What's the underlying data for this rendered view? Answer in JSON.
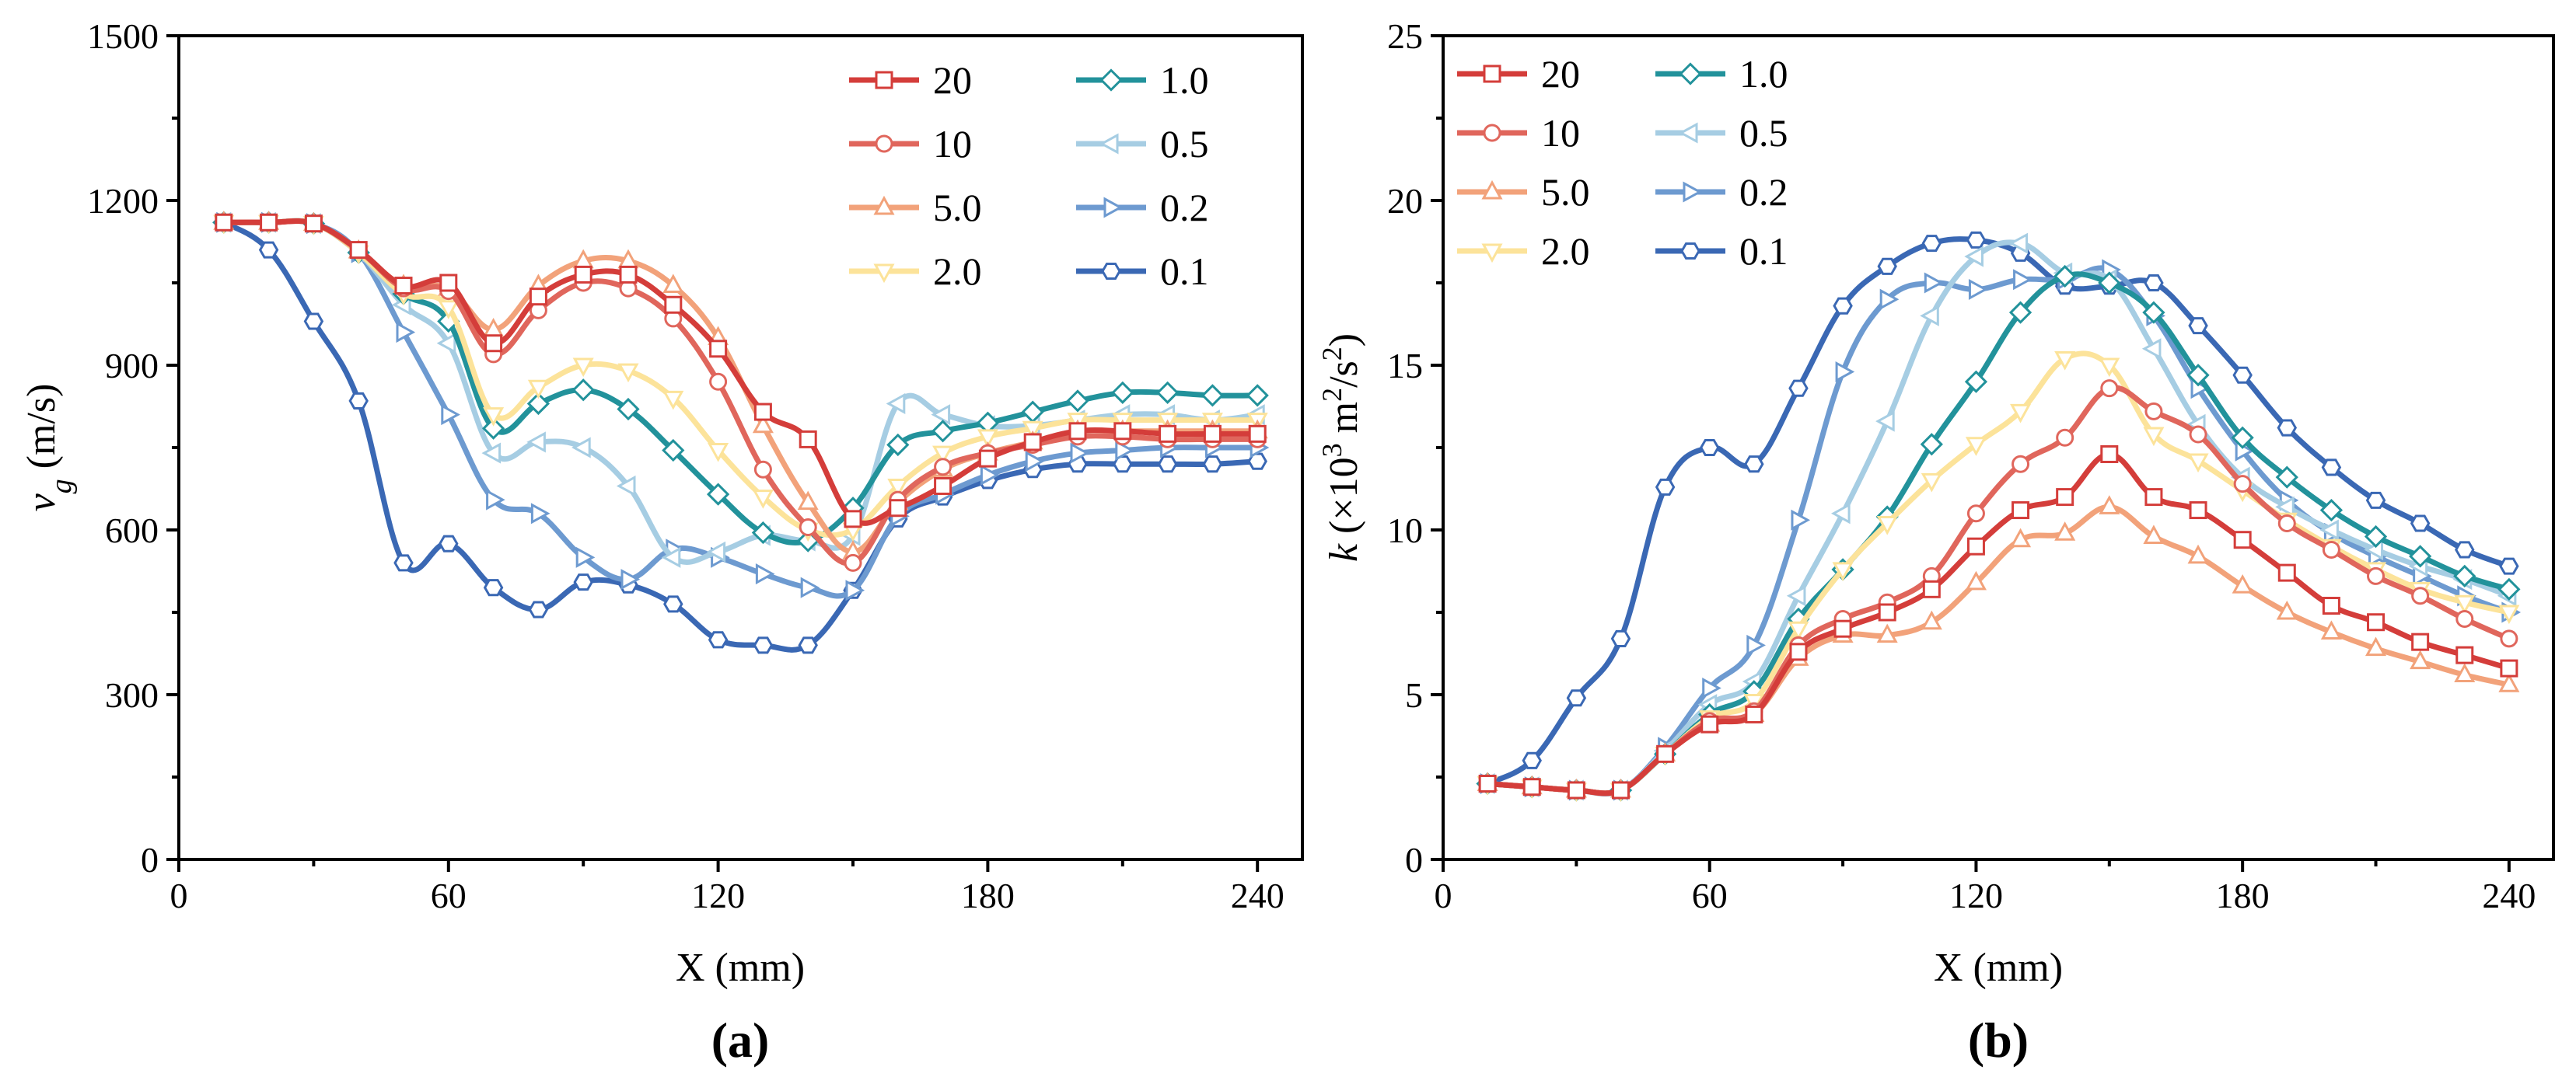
{
  "chart_data": [
    {
      "type": "line",
      "panel_label": "(a)",
      "xlabel": "X (mm)",
      "ylabel_symbol": "v",
      "ylabel_subscript": "g",
      "ylabel_unit": " (m/s)",
      "xlim": [
        0,
        250
      ],
      "ylim": [
        0,
        1500
      ],
      "xticks": [
        0,
        60,
        120,
        180,
        240
      ],
      "yticks": [
        0,
        300,
        600,
        900,
        1200,
        1500
      ],
      "legend_position": "top-right",
      "x": [
        10,
        20,
        30,
        40,
        50,
        60,
        70,
        80,
        90,
        100,
        110,
        120,
        130,
        140,
        150,
        160,
        170,
        180,
        190,
        200,
        210,
        220,
        230,
        240
      ],
      "series": [
        {
          "name": "20",
          "color": "#d43d3a",
          "marker": "square",
          "values": [
            1160,
            1160,
            1158,
            1110,
            1045,
            1050,
            940,
            1025,
            1065,
            1065,
            1010,
            930,
            815,
            765,
            620,
            640,
            680,
            730,
            760,
            780,
            780,
            775,
            775,
            775
          ]
        },
        {
          "name": "10",
          "color": "#e0665c",
          "marker": "circle",
          "values": [
            1160,
            1160,
            1158,
            1110,
            1040,
            1035,
            920,
            1000,
            1050,
            1040,
            985,
            870,
            710,
            605,
            540,
            655,
            715,
            740,
            755,
            770,
            770,
            765,
            765,
            765
          ]
        },
        {
          "name": "5.0",
          "color": "#f2a27a",
          "marker": "triangle",
          "values": [
            1160,
            1160,
            1158,
            1108,
            1045,
            1040,
            965,
            1045,
            1090,
            1090,
            1045,
            950,
            790,
            650,
            560,
            650,
            710,
            740,
            760,
            780,
            780,
            780,
            780,
            780
          ]
        },
        {
          "name": "2.0",
          "color": "#fce39a",
          "marker": "tri-down",
          "values": [
            1160,
            1160,
            1158,
            1105,
            1030,
            1005,
            810,
            860,
            900,
            890,
            840,
            745,
            660,
            600,
            600,
            680,
            740,
            770,
            785,
            800,
            800,
            800,
            800,
            800
          ]
        },
        {
          "name": "1.0",
          "color": "#22929b",
          "marker": "diamond",
          "values": [
            1160,
            1160,
            1158,
            1105,
            1030,
            980,
            785,
            830,
            855,
            820,
            745,
            665,
            595,
            580,
            640,
            755,
            780,
            795,
            815,
            835,
            850,
            850,
            845,
            845
          ]
        },
        {
          "name": "0.5",
          "color": "#a6cde3",
          "marker": "tri-left",
          "values": [
            1160,
            1160,
            1158,
            1105,
            1010,
            940,
            740,
            760,
            750,
            680,
            550,
            560,
            590,
            580,
            590,
            830,
            810,
            790,
            790,
            800,
            810,
            810,
            800,
            810
          ]
        },
        {
          "name": "0.2",
          "color": "#6d9ad0",
          "marker": "tri-right",
          "values": [
            1160,
            1160,
            1158,
            1105,
            960,
            810,
            655,
            630,
            550,
            510,
            565,
            550,
            520,
            495,
            490,
            625,
            665,
            700,
            725,
            740,
            745,
            750,
            750,
            750
          ]
        },
        {
          "name": "0.1",
          "color": "#3a68b4",
          "marker": "hexagon",
          "values": [
            1160,
            1110,
            980,
            835,
            540,
            575,
            495,
            455,
            505,
            500,
            465,
            400,
            390,
            390,
            490,
            620,
            660,
            690,
            710,
            720,
            720,
            720,
            720,
            725
          ]
        }
      ]
    },
    {
      "type": "line",
      "panel_label": "(b)",
      "xlabel": "X (mm)",
      "ylabel_symbol": "k",
      "ylabel_rest": " (×10",
      "ylabel_exp1": "3",
      "ylabel_mid": " m",
      "ylabel_exp2": "2",
      "ylabel_mid2": "/s",
      "ylabel_exp3": "2",
      "ylabel_end": ")",
      "xlim": [
        0,
        250
      ],
      "ylim": [
        0,
        25
      ],
      "xticks": [
        0,
        60,
        120,
        180,
        240
      ],
      "yticks": [
        0,
        5,
        10,
        15,
        20,
        25
      ],
      "legend_position": "top-left",
      "x": [
        10,
        20,
        30,
        40,
        50,
        60,
        70,
        80,
        90,
        100,
        110,
        120,
        130,
        140,
        150,
        160,
        170,
        180,
        190,
        200,
        210,
        220,
        230,
        240
      ],
      "series": [
        {
          "name": "20",
          "color": "#d43d3a",
          "marker": "square",
          "values": [
            2.3,
            2.2,
            2.1,
            2.1,
            3.2,
            4.1,
            4.4,
            6.3,
            7.0,
            7.5,
            8.2,
            9.5,
            10.6,
            11.0,
            12.3,
            11.0,
            10.6,
            9.7,
            8.7,
            7.7,
            7.2,
            6.6,
            6.2,
            5.8
          ]
        },
        {
          "name": "10",
          "color": "#e0665c",
          "marker": "circle",
          "values": [
            2.3,
            2.2,
            2.1,
            2.1,
            3.2,
            4.2,
            4.5,
            6.5,
            7.3,
            7.8,
            8.6,
            10.5,
            12.0,
            12.8,
            14.3,
            13.6,
            12.9,
            11.4,
            10.2,
            9.4,
            8.6,
            8.0,
            7.3,
            6.7
          ]
        },
        {
          "name": "5.0",
          "color": "#f2a27a",
          "marker": "triangle",
          "values": [
            2.3,
            2.2,
            2.1,
            2.1,
            3.2,
            4.1,
            4.4,
            6.1,
            6.8,
            6.8,
            7.2,
            8.4,
            9.7,
            9.9,
            10.7,
            9.8,
            9.2,
            8.3,
            7.5,
            6.9,
            6.4,
            6.0,
            5.6,
            5.3
          ]
        },
        {
          "name": "2.0",
          "color": "#fce39a",
          "marker": "tri-down",
          "values": [
            2.3,
            2.2,
            2.1,
            2.1,
            3.2,
            4.3,
            4.8,
            7.0,
            8.8,
            10.2,
            11.5,
            12.6,
            13.6,
            15.2,
            15.0,
            12.9,
            12.1,
            11.2,
            10.3,
            9.5,
            8.8,
            8.2,
            7.8,
            7.5
          ]
        },
        {
          "name": "1.0",
          "color": "#22929b",
          "marker": "diamond",
          "values": [
            2.3,
            2.2,
            2.1,
            2.1,
            3.2,
            4.4,
            5.1,
            7.3,
            8.8,
            10.4,
            12.6,
            14.5,
            16.6,
            17.7,
            17.5,
            16.6,
            14.7,
            12.8,
            11.6,
            10.6,
            9.8,
            9.2,
            8.6,
            8.2
          ]
        },
        {
          "name": "0.5",
          "color": "#a6cde3",
          "marker": "tri-left",
          "values": [
            2.3,
            2.2,
            2.1,
            2.1,
            3.3,
            4.7,
            5.4,
            8.0,
            10.5,
            13.3,
            16.5,
            18.3,
            18.7,
            17.8,
            17.6,
            15.5,
            13.2,
            11.6,
            10.7,
            10.0,
            9.4,
            8.9,
            8.5,
            8.0
          ]
        },
        {
          "name": "0.2",
          "color": "#6d9ad0",
          "marker": "tri-right",
          "values": [
            2.3,
            2.2,
            2.1,
            2.1,
            3.4,
            5.2,
            6.5,
            10.3,
            14.8,
            17.0,
            17.5,
            17.3,
            17.6,
            17.6,
            17.9,
            16.5,
            14.3,
            12.4,
            10.9,
            9.9,
            9.2,
            8.6,
            8.0,
            7.5
          ]
        },
        {
          "name": "0.1",
          "color": "#3a68b4",
          "marker": "hexagon",
          "values": [
            2.3,
            3.0,
            4.9,
            6.7,
            11.3,
            12.5,
            12.0,
            14.3,
            16.8,
            18.0,
            18.7,
            18.8,
            18.4,
            17.4,
            17.4,
            17.5,
            16.2,
            14.7,
            13.1,
            11.9,
            10.9,
            10.2,
            9.4,
            8.9
          ]
        }
      ]
    }
  ]
}
